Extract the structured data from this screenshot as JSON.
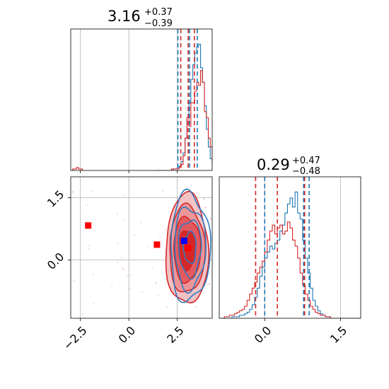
{
  "chart_data": [
    {
      "id": "hist-param-1",
      "type": "histogram",
      "title_value": "3.16",
      "title_plus": "+0.37",
      "title_minus": "−0.39",
      "xlim": [
        -3.0,
        4.3
      ],
      "grid": true,
      "xticks": [
        -2.5,
        0.0,
        2.5
      ],
      "blue_quantile_lines": [
        2.53,
        3.13,
        3.53
      ],
      "red_quantile_lines": [
        2.68,
        3.06,
        3.38
      ],
      "series": [
        {
          "color": "#1f77b4",
          "bins_start": 1.4,
          "bin_width": 0.1,
          "values": [
            0,
            0,
            0,
            0,
            0,
            0,
            0,
            0,
            0,
            1,
            1,
            2,
            3,
            6,
            12,
            22,
            36,
            46,
            62,
            72,
            80,
            84,
            86,
            70,
            60,
            44,
            28,
            16,
            8,
            4,
            2,
            1,
            0
          ]
        },
        {
          "color": "#d62728",
          "bins_start": 1.4,
          "bin_width": 0.1,
          "values": [
            0,
            0,
            0,
            0,
            0,
            0,
            0,
            0,
            1,
            1,
            1,
            1,
            2,
            4,
            10,
            22,
            36,
            30,
            46,
            46,
            54,
            60,
            58,
            68,
            60,
            40,
            36,
            22,
            16,
            6,
            4,
            2,
            1,
            1
          ],
          "low_tail": {
            "x_start": -3.0,
            "bin_width": 0.1,
            "values": [
              0,
              1,
              1,
              2,
              1,
              1,
              0
            ]
          }
        }
      ]
    },
    {
      "id": "hist-param-2",
      "type": "histogram",
      "title_value": "0.29",
      "title_plus": "+0.47",
      "title_minus": "−0.48",
      "xlim": [
        -0.9,
        1.9
      ],
      "grid": true,
      "xticks": [
        0.0,
        1.5
      ],
      "blue_quantile_lines": [
        0.0,
        0.77,
        0.88
      ],
      "red_quantile_lines": [
        -0.18,
        0.25,
        0.79
      ],
      "series": [
        {
          "color": "#1f77b4",
          "bins_start": -0.9,
          "bin_width": 0.05,
          "values": [
            0,
            0,
            0,
            0,
            0,
            1,
            1,
            1,
            2,
            2,
            3,
            4,
            6,
            9,
            14,
            20,
            28,
            34,
            40,
            44,
            48,
            46,
            50,
            52,
            58,
            62,
            70,
            76,
            80,
            74,
            84,
            70,
            66,
            52,
            40,
            30,
            20,
            12,
            8,
            5,
            3,
            2,
            1,
            1,
            0,
            0,
            0,
            0,
            0,
            0,
            0,
            0,
            0,
            0,
            0,
            0
          ]
        },
        {
          "color": "#d62728",
          "bins_start": -0.9,
          "bin_width": 0.05,
          "values": [
            0,
            0,
            1,
            1,
            2,
            2,
            3,
            4,
            5,
            6,
            8,
            12,
            16,
            20,
            24,
            30,
            34,
            38,
            44,
            52,
            58,
            62,
            56,
            60,
            62,
            56,
            58,
            64,
            60,
            52,
            48,
            40,
            30,
            22,
            16,
            12,
            8,
            6,
            4,
            3,
            2,
            2,
            1,
            1,
            0,
            0,
            0,
            0,
            0,
            0,
            0,
            0,
            0,
            0,
            0,
            0
          ]
        }
      ]
    },
    {
      "id": "scatter-2d",
      "type": "scatter",
      "xlim": [
        -3.0,
        4.3
      ],
      "ylim": [
        -1.4,
        2.0
      ],
      "grid": true,
      "xticks": [
        -2.5,
        0.0,
        2.5
      ],
      "yticks": [
        0.0,
        1.5
      ],
      "red_markers": [
        {
          "x": -2.1,
          "y": 0.83
        },
        {
          "x": 1.45,
          "y": 0.37
        },
        {
          "x": 3.05,
          "y": 0.29
        }
      ],
      "blue_markers": [
        {
          "x": 2.85,
          "y": 0.46
        }
      ],
      "contours": {
        "red_center": {
          "x": 3.0,
          "y": 0.25
        },
        "blue_center": {
          "x": 3.15,
          "y": 0.3
        }
      }
    }
  ]
}
